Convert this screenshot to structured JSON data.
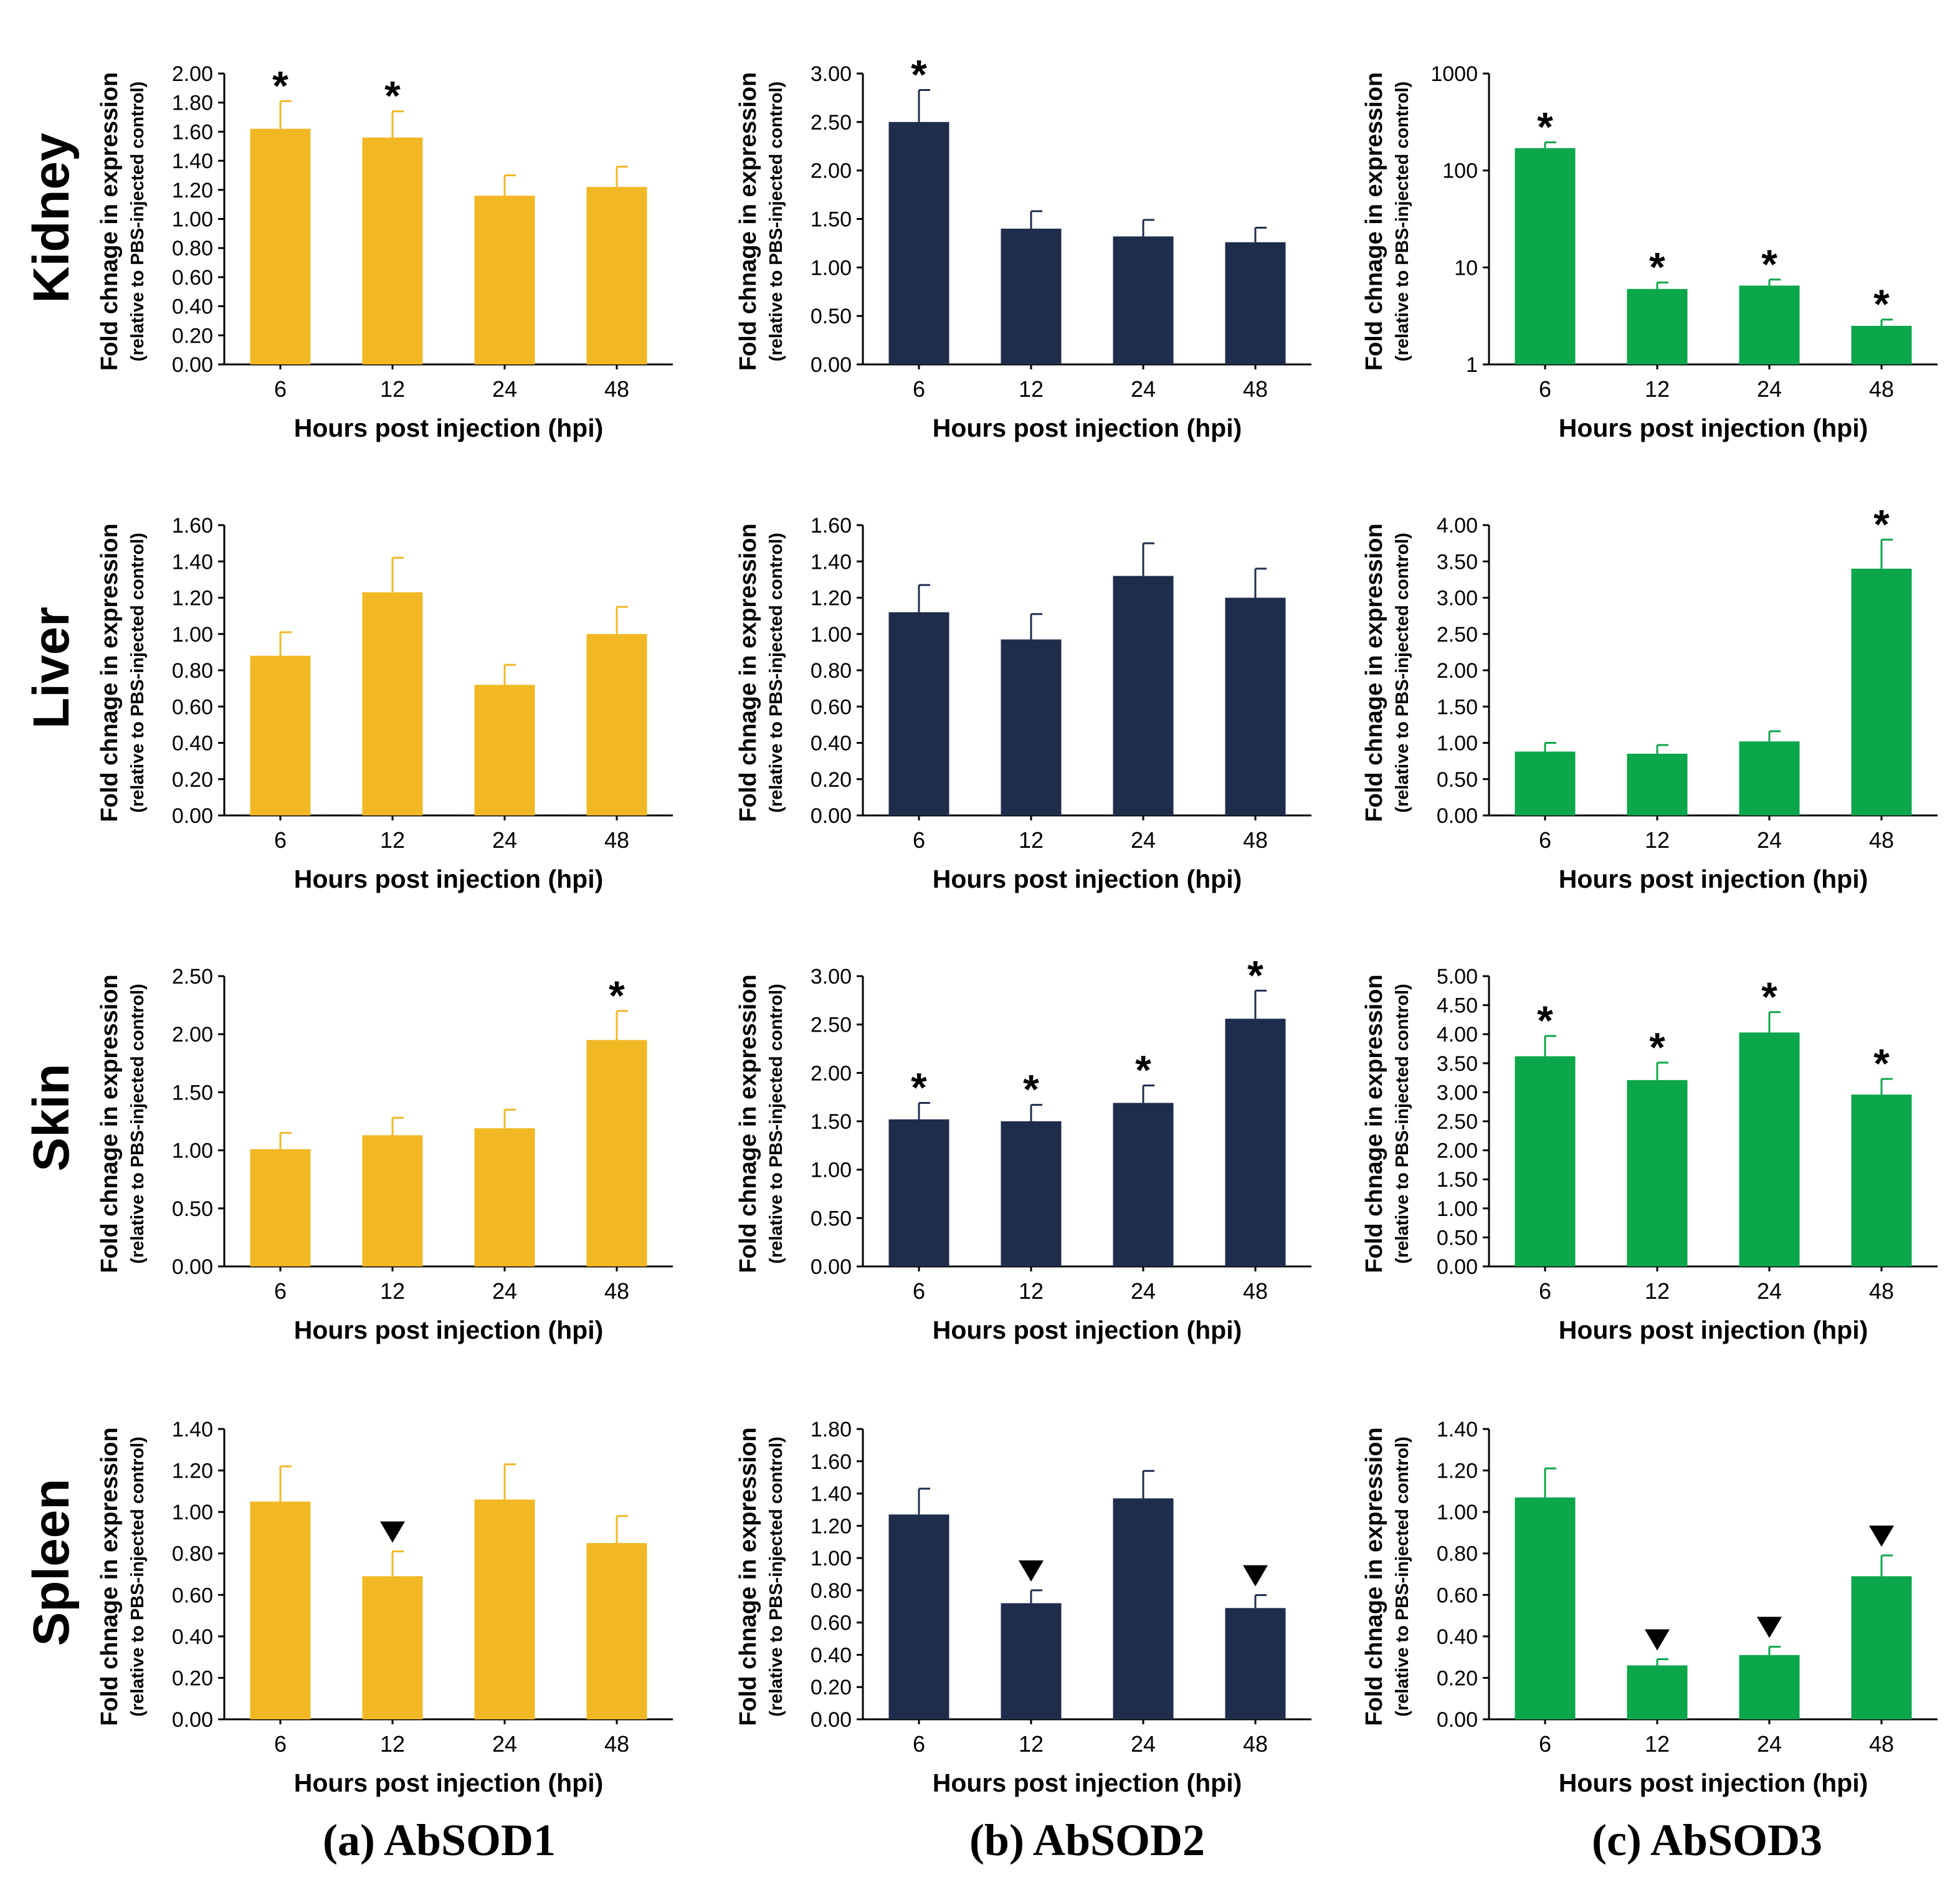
{
  "row_labels": [
    "Kidney",
    "Liver",
    "Skin",
    "Spleen"
  ],
  "column_captions": [
    "(a) AbSOD1",
    "(b) AbSOD2",
    "(c) AbSOD3"
  ],
  "colors": {
    "AbSOD1": "#f2b824",
    "AbSOD2": "#1f2d4c",
    "AbSOD3": "#0ca64b",
    "axis": "#000000"
  },
  "legend_symbols": {
    "upregulated": "*",
    "downregulated": "▼"
  },
  "chart_data": [
    {
      "type": "bar",
      "row": "Kidney",
      "gene": "AbSOD1",
      "color": "#f2b824",
      "categories": [
        "6",
        "12",
        "24",
        "48"
      ],
      "values": [
        1.62,
        1.56,
        1.16,
        1.22
      ],
      "errors": [
        0.19,
        0.18,
        0.14,
        0.14
      ],
      "marks": [
        "*",
        "*",
        "",
        ""
      ],
      "xlabel": "Hours post injection (hpi)",
      "ylabel": "Fold chnage in expression",
      "ylabel_sub": "(relative to PBS-injected control)",
      "ylim": [
        0,
        2.0
      ],
      "yscale": "linear",
      "yticks": [
        0,
        0.2,
        0.4,
        0.6,
        0.8,
        1.0,
        1.2,
        1.4,
        1.6,
        1.8,
        2.0
      ],
      "ytick_labels": [
        "0.00",
        "0.20",
        "0.40",
        "0.60",
        "0.80",
        "1.00",
        "1.20",
        "1.40",
        "1.60",
        "1.80",
        "2.00"
      ]
    },
    {
      "type": "bar",
      "row": "Kidney",
      "gene": "AbSOD2",
      "color": "#1f2d4c",
      "categories": [
        "6",
        "12",
        "24",
        "48"
      ],
      "values": [
        2.5,
        1.4,
        1.32,
        1.26
      ],
      "errors": [
        0.33,
        0.18,
        0.17,
        0.15
      ],
      "marks": [
        "*",
        "",
        "",
        ""
      ],
      "xlabel": "Hours post injection (hpi)",
      "ylabel": "Fold chnage in expression",
      "ylabel_sub": "(relative to PBS-injected control)",
      "ylim": [
        0,
        3.0
      ],
      "yscale": "linear",
      "yticks": [
        0,
        0.5,
        1.0,
        1.5,
        2.0,
        2.5,
        3.0
      ],
      "ytick_labels": [
        "0.00",
        "0.50",
        "1.00",
        "1.50",
        "2.00",
        "2.50",
        "3.00"
      ]
    },
    {
      "type": "bar",
      "row": "Kidney",
      "gene": "AbSOD3",
      "color": "#0ca64b",
      "categories": [
        "6",
        "12",
        "24",
        "48"
      ],
      "values": [
        170,
        6.0,
        6.5,
        2.5
      ],
      "errors": [
        25,
        1.0,
        1.0,
        0.4
      ],
      "marks": [
        "*",
        "*",
        "*",
        "*"
      ],
      "xlabel": "Hours post injection (hpi)",
      "ylabel": "Fold chnage in expression",
      "ylabel_sub": "(relative to PBS-injected control)",
      "ylim": [
        1,
        1000
      ],
      "yscale": "log",
      "yticks": [
        1,
        10,
        100,
        1000
      ],
      "ytick_labels": [
        "1",
        "10",
        "100",
        "1000"
      ]
    },
    {
      "type": "bar",
      "row": "Liver",
      "gene": "AbSOD1",
      "color": "#f2b824",
      "categories": [
        "6",
        "12",
        "24",
        "48"
      ],
      "values": [
        0.88,
        1.23,
        0.72,
        1.0
      ],
      "errors": [
        0.13,
        0.19,
        0.11,
        0.15
      ],
      "marks": [
        "",
        "",
        "",
        ""
      ],
      "xlabel": "Hours post injection (hpi)",
      "ylabel": "Fold chnage in expression",
      "ylabel_sub": "(relative to PBS-injected control)",
      "ylim": [
        0,
        1.6
      ],
      "yscale": "linear",
      "yticks": [
        0,
        0.2,
        0.4,
        0.6,
        0.8,
        1.0,
        1.2,
        1.4,
        1.6
      ],
      "ytick_labels": [
        "0.00",
        "0.20",
        "0.40",
        "0.60",
        "0.80",
        "1.00",
        "1.20",
        "1.40",
        "1.60"
      ]
    },
    {
      "type": "bar",
      "row": "Liver",
      "gene": "AbSOD2",
      "color": "#1f2d4c",
      "categories": [
        "6",
        "12",
        "24",
        "48"
      ],
      "values": [
        1.12,
        0.97,
        1.32,
        1.2
      ],
      "errors": [
        0.15,
        0.14,
        0.18,
        0.16
      ],
      "marks": [
        "",
        "",
        "",
        ""
      ],
      "xlabel": "Hours post injection (hpi)",
      "ylabel": "Fold chnage in expression",
      "ylabel_sub": "(relative to PBS-injected control)",
      "ylim": [
        0,
        1.6
      ],
      "yscale": "linear",
      "yticks": [
        0,
        0.2,
        0.4,
        0.6,
        0.8,
        1.0,
        1.2,
        1.4,
        1.6
      ],
      "ytick_labels": [
        "0.00",
        "0.20",
        "0.40",
        "0.60",
        "0.80",
        "1.00",
        "1.20",
        "1.40",
        "1.60"
      ]
    },
    {
      "type": "bar",
      "row": "Liver",
      "gene": "AbSOD3",
      "color": "#0ca64b",
      "categories": [
        "6",
        "12",
        "24",
        "48"
      ],
      "values": [
        0.88,
        0.85,
        1.02,
        3.4
      ],
      "errors": [
        0.12,
        0.12,
        0.14,
        0.4
      ],
      "marks": [
        "",
        "",
        "",
        "*"
      ],
      "xlabel": "Hours post injection (hpi)",
      "ylabel": "Fold chnage in expression",
      "ylabel_sub": "(relative to PBS-injected control)",
      "ylim": [
        0,
        4.0
      ],
      "yscale": "linear",
      "yticks": [
        0,
        0.5,
        1.0,
        1.5,
        2.0,
        2.5,
        3.0,
        3.5,
        4.0
      ],
      "ytick_labels": [
        "0.00",
        "0.50",
        "1.00",
        "1.50",
        "2.00",
        "2.50",
        "3.00",
        "3.50",
        "4.00"
      ]
    },
    {
      "type": "bar",
      "row": "Skin",
      "gene": "AbSOD1",
      "color": "#f2b824",
      "categories": [
        "6",
        "12",
        "24",
        "48"
      ],
      "values": [
        1.01,
        1.13,
        1.19,
        1.95
      ],
      "errors": [
        0.14,
        0.15,
        0.16,
        0.25
      ],
      "marks": [
        "",
        "",
        "",
        "*"
      ],
      "xlabel": "Hours post injection (hpi)",
      "ylabel": "Fold chnage in expression",
      "ylabel_sub": "(relative to PBS-injected control)",
      "ylim": [
        0,
        2.5
      ],
      "yscale": "linear",
      "yticks": [
        0,
        0.5,
        1.0,
        1.5,
        2.0,
        2.5
      ],
      "ytick_labels": [
        "0.00",
        "0.50",
        "1.00",
        "1.50",
        "2.00",
        "2.50"
      ]
    },
    {
      "type": "bar",
      "row": "Skin",
      "gene": "AbSOD2",
      "color": "#1f2d4c",
      "categories": [
        "6",
        "12",
        "24",
        "48"
      ],
      "values": [
        1.52,
        1.5,
        1.69,
        2.56
      ],
      "errors": [
        0.17,
        0.17,
        0.18,
        0.29
      ],
      "marks": [
        "*",
        "*",
        "*",
        "*"
      ],
      "xlabel": "Hours post injection (hpi)",
      "ylabel": "Fold chnage in expression",
      "ylabel_sub": "(relative to PBS-injected control)",
      "ylim": [
        0,
        3.0
      ],
      "yscale": "linear",
      "yticks": [
        0,
        0.5,
        1.0,
        1.5,
        2.0,
        2.5,
        3.0
      ],
      "ytick_labels": [
        "0.00",
        "0.50",
        "1.00",
        "1.50",
        "2.00",
        "2.50",
        "3.00"
      ]
    },
    {
      "type": "bar",
      "row": "Skin",
      "gene": "AbSOD3",
      "color": "#0ca64b",
      "categories": [
        "6",
        "12",
        "24",
        "48"
      ],
      "values": [
        3.62,
        3.21,
        4.03,
        2.96
      ],
      "errors": [
        0.35,
        0.3,
        0.35,
        0.27
      ],
      "marks": [
        "*",
        "*",
        "*",
        "*"
      ],
      "xlabel": "Hours post injection (hpi)",
      "ylabel": "Fold chnage in expression",
      "ylabel_sub": "(relative to PBS-injected control)",
      "ylim": [
        0,
        5.0
      ],
      "yscale": "linear",
      "yticks": [
        0,
        0.5,
        1.0,
        1.5,
        2.0,
        2.5,
        3.0,
        3.5,
        4.0,
        4.5,
        5.0
      ],
      "ytick_labels": [
        "0.00",
        "0.50",
        "1.00",
        "1.50",
        "2.00",
        "2.50",
        "3.00",
        "3.50",
        "4.00",
        "4.50",
        "5.00"
      ]
    },
    {
      "type": "bar",
      "row": "Spleen",
      "gene": "AbSOD1",
      "color": "#f2b824",
      "categories": [
        "6",
        "12",
        "24",
        "48"
      ],
      "values": [
        1.05,
        0.69,
        1.06,
        0.85
      ],
      "errors": [
        0.17,
        0.12,
        0.17,
        0.13
      ],
      "marks": [
        "",
        "▼",
        "",
        ""
      ],
      "xlabel": "Hours post injection (hpi)",
      "ylabel": "Fold chnage in expression",
      "ylabel_sub": "(relative to PBS-injected control)",
      "ylim": [
        0,
        1.4
      ],
      "yscale": "linear",
      "yticks": [
        0,
        0.2,
        0.4,
        0.6,
        0.8,
        1.0,
        1.2,
        1.4
      ],
      "ytick_labels": [
        "0.00",
        "0.20",
        "0.40",
        "0.60",
        "0.80",
        "1.00",
        "1.20",
        "1.40"
      ]
    },
    {
      "type": "bar",
      "row": "Spleen",
      "gene": "AbSOD2",
      "color": "#1f2d4c",
      "categories": [
        "6",
        "12",
        "24",
        "48"
      ],
      "values": [
        1.27,
        0.72,
        1.37,
        0.69
      ],
      "errors": [
        0.16,
        0.08,
        0.17,
        0.08
      ],
      "marks": [
        "",
        "▼",
        "",
        "▼"
      ],
      "xlabel": "Hours post injection (hpi)",
      "ylabel": "Fold chnage in expression",
      "ylabel_sub": "(relative to PBS-injected control)",
      "ylim": [
        0,
        1.8
      ],
      "yscale": "linear",
      "yticks": [
        0,
        0.2,
        0.4,
        0.6,
        0.8,
        1.0,
        1.2,
        1.4,
        1.6,
        1.8
      ],
      "ytick_labels": [
        "0.00",
        "0.20",
        "0.40",
        "0.60",
        "0.80",
        "1.00",
        "1.20",
        "1.40",
        "1.60",
        "1.80"
      ]
    },
    {
      "type": "bar",
      "row": "Spleen",
      "gene": "AbSOD3",
      "color": "#0ca64b",
      "categories": [
        "6",
        "12",
        "24",
        "48"
      ],
      "values": [
        1.07,
        0.26,
        0.31,
        0.69
      ],
      "errors": [
        0.14,
        0.03,
        0.04,
        0.1
      ],
      "marks": [
        "",
        "▼",
        "▼",
        "▼"
      ],
      "xlabel": "Hours post injection (hpi)",
      "ylabel": "Fold chnage in expression",
      "ylabel_sub": "(relative to PBS-injected control)",
      "ylim": [
        0,
        1.4
      ],
      "yscale": "linear",
      "yticks": [
        0,
        0.2,
        0.4,
        0.6,
        0.8,
        1.0,
        1.2,
        1.4
      ],
      "ytick_labels": [
        "0.00",
        "0.20",
        "0.40",
        "0.60",
        "0.80",
        "1.00",
        "1.20",
        "1.40"
      ]
    }
  ]
}
